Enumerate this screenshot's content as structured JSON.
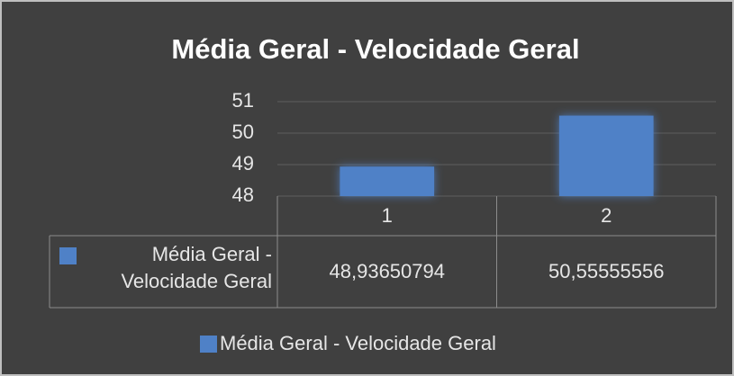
{
  "chart_data": {
    "type": "bar",
    "title": "Média Geral - Velocidade Geral",
    "categories": [
      "1",
      "2"
    ],
    "series": [
      {
        "name": "Média Geral - Velocidade Geral",
        "color": "#4f81c7",
        "values": [
          48.93650794,
          50.55555556
        ],
        "value_labels": [
          "48,93650794",
          "50,55555556"
        ]
      }
    ],
    "ylim": [
      48,
      51
    ],
    "yticks": [
      48,
      49,
      50,
      51
    ],
    "grid": true,
    "legend": "bottom"
  }
}
